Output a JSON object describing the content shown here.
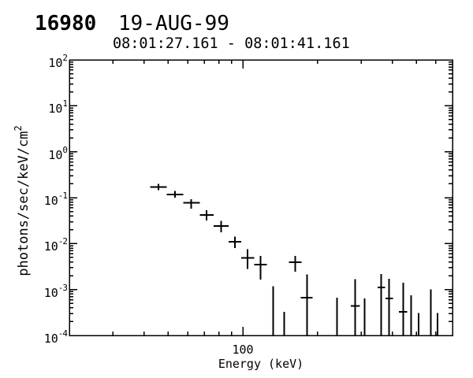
{
  "header": {
    "burst_id": "16980",
    "date": "19-AUG-99",
    "time_range": "08:01:27.161 - 08:01:41.161"
  },
  "chart_data": {
    "type": "scatter",
    "title": "16980  19-AUG-99",
    "subtitle": "08:01:27.161 - 08:01:41.161",
    "xlabel": "Energy (keV)",
    "ylabel": "photons/sec/keV/cm2",
    "ylabel_base": "photons/sec/keV/cm",
    "ylabel_sup": "2",
    "xscale": "log",
    "yscale": "log",
    "xlim": [
      20,
      700
    ],
    "ylim": [
      0.0001,
      100
    ],
    "grid": false,
    "legend": null,
    "marker_style": "plus-with-bin-width-and-error-bars",
    "color": "#000000",
    "background": "#ffffff",
    "x_major_ticks": [
      100
    ],
    "x_major_tick_labels": [
      "100"
    ],
    "x_minor_ticks": [
      30,
      40,
      50,
      60,
      70,
      80,
      90,
      200,
      300,
      400,
      500,
      600
    ],
    "y_major_tick_exponents": [
      2,
      1,
      0,
      -1,
      -2,
      -3,
      -4
    ],
    "points": [
      {
        "x": 45.7,
        "xlo": 42.4,
        "xhi": 49.4,
        "y": 0.172,
        "ylo": 0.145,
        "yhi": 0.201
      },
      {
        "x": 53.4,
        "xlo": 49.4,
        "xhi": 57.6,
        "y": 0.118,
        "ylo": 0.1,
        "yhi": 0.139
      },
      {
        "x": 61.9,
        "xlo": 57.6,
        "xhi": 67.0,
        "y": 0.078,
        "ylo": 0.058,
        "yhi": 0.092
      },
      {
        "x": 71.3,
        "xlo": 67.0,
        "xhi": 76.3,
        "y": 0.042,
        "ylo": 0.032,
        "yhi": 0.053
      },
      {
        "x": 81.9,
        "xlo": 76.3,
        "xhi": 87.7,
        "y": 0.024,
        "ylo": 0.0175,
        "yhi": 0.031
      },
      {
        "x": 92.8,
        "xlo": 87.7,
        "xhi": 98.5,
        "y": 0.011,
        "ylo": 0.008,
        "yhi": 0.0143
      },
      {
        "x": 104.5,
        "xlo": 98.5,
        "xhi": 111.0,
        "y": 0.0049,
        "ylo": 0.0028,
        "yhi": 0.0075
      },
      {
        "x": 117.7,
        "xlo": 111.0,
        "xhi": 124.8,
        "y": 0.0035,
        "ylo": 0.00165,
        "yhi": 0.0054
      },
      {
        "x": 162.4,
        "xlo": 153.6,
        "xhi": 172.7,
        "y": 0.0039,
        "ylo": 0.00245,
        "yhi": 0.0054
      },
      {
        "x": 181.3,
        "xlo": 171.4,
        "xhi": 191.3,
        "y": 0.00066,
        "ylo": 0.0001,
        "yhi": 0.00215
      },
      {
        "x": 284.1,
        "xlo": 272.4,
        "xhi": 296.7,
        "y": 0.00044,
        "ylo": 0.0001,
        "yhi": 0.00168
      },
      {
        "x": 360.5,
        "xlo": 349.3,
        "xhi": 374.0,
        "y": 0.00111,
        "ylo": 0.0001,
        "yhi": 0.00217
      },
      {
        "x": 387.8,
        "xlo": 375.9,
        "xhi": 402.3,
        "y": 0.00064,
        "ylo": 0.0001,
        "yhi": 0.00171
      },
      {
        "x": 443.7,
        "xlo": 425.6,
        "xhi": 460.3,
        "y": 0.00033,
        "ylo": 0.0001,
        "yhi": 0.00141
      }
    ],
    "vertical_lines": [
      {
        "x": 132.7,
        "ytop": 0.00119
      },
      {
        "x": 147.0,
        "ytop": 0.00033
      },
      {
        "x": 239.4,
        "ytop": 0.00067
      },
      {
        "x": 309.2,
        "ytop": 0.00064
      },
      {
        "x": 477.3,
        "ytop": 0.00075
      },
      {
        "x": 511.1,
        "ytop": 0.00031
      },
      {
        "x": 573.1,
        "ytop": 0.001
      },
      {
        "x": 609.1,
        "ytop": 0.00031
      }
    ]
  }
}
